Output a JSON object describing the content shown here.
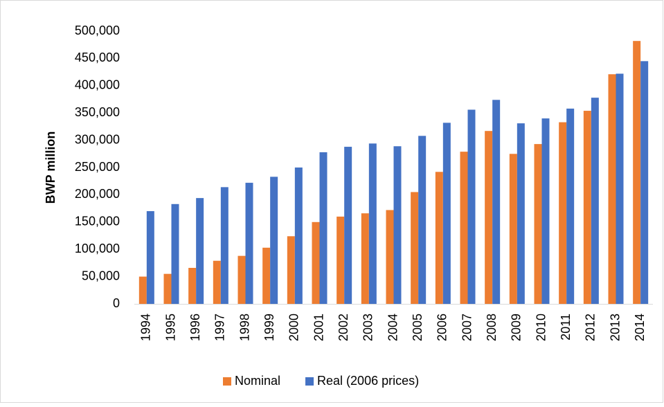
{
  "chart_data": {
    "type": "bar",
    "y_label": "BWP million",
    "categories": [
      "1994",
      "1995",
      "1996",
      "1997",
      "1998",
      "1999",
      "2000",
      "2001",
      "2002",
      "2003",
      "2004",
      "2005",
      "2006",
      "2007",
      "2008",
      "2009",
      "2010",
      "2011",
      "2012",
      "2013",
      "2014"
    ],
    "series": [
      {
        "name": "Nominal",
        "color": "#ed7d31",
        "values": [
          50000,
          55000,
          66000,
          79000,
          88000,
          103000,
          124000,
          150000,
          160000,
          166000,
          172000,
          205000,
          242000,
          279000,
          317000,
          275000,
          293000,
          333000,
          354000,
          421000,
          482000
        ]
      },
      {
        "name": "Real (2006 prices)",
        "color": "#4472c4",
        "values": [
          170000,
          183000,
          194000,
          214000,
          222000,
          233000,
          250000,
          278000,
          288000,
          294000,
          289000,
          308000,
          332000,
          356000,
          374000,
          331000,
          340000,
          358000,
          378000,
          422000,
          445000
        ]
      }
    ],
    "ylim": [
      0,
      500000
    ],
    "yticks": [
      0,
      {
        "value": 50000,
        "label": "50,000"
      },
      {
        "value": 100000,
        "label": "100,000"
      },
      {
        "value": 150000,
        "label": "150,000"
      },
      {
        "value": 200000,
        "label": "200,000"
      },
      {
        "value": 250000,
        "label": "250,000"
      },
      {
        "value": 300000,
        "label": "300,000"
      },
      {
        "value": 350000,
        "label": "350,000"
      },
      {
        "value": 400000,
        "label": "400,000"
      },
      {
        "value": 450000,
        "label": "450,000"
      },
      {
        "value": 500000,
        "label": "500,000"
      }
    ],
    "grid": false,
    "legend": "bottom"
  }
}
